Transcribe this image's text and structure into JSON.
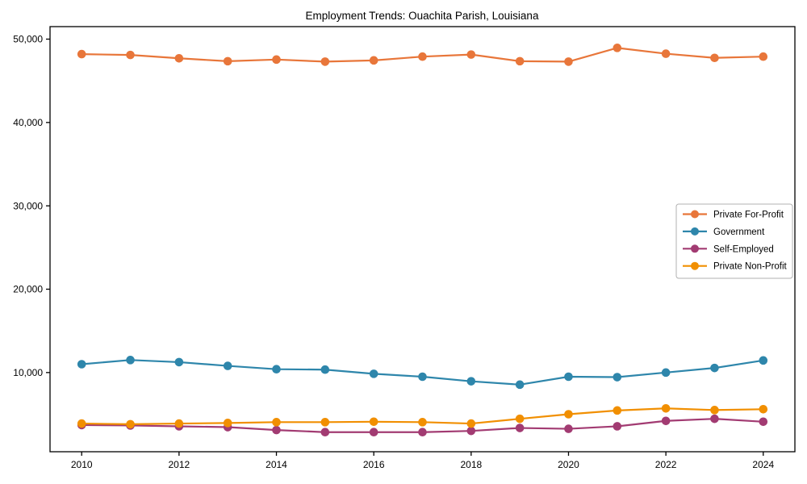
{
  "chart_data": {
    "type": "line",
    "title": "Employment Trends: Ouachita Parish, Louisiana",
    "xlabel": "",
    "ylabel": "",
    "x": [
      2010,
      2011,
      2012,
      2013,
      2014,
      2015,
      2016,
      2017,
      2018,
      2019,
      2020,
      2021,
      2022,
      2023,
      2024
    ],
    "series": [
      {
        "name": "Private For-Profit",
        "color": "#E8763A",
        "values": [
          48200,
          48100,
          47700,
          47350,
          47550,
          47300,
          47450,
          47900,
          48150,
          47350,
          47300,
          48950,
          48250,
          47750,
          47900
        ]
      },
      {
        "name": "Government",
        "color": "#2E86AB",
        "values": [
          11000,
          11500,
          11250,
          10800,
          10400,
          10350,
          9850,
          9500,
          8950,
          8550,
          9500,
          9450,
          10000,
          10550,
          11450
        ]
      },
      {
        "name": "Self-Employed",
        "color": "#A23B72",
        "values": [
          3700,
          3650,
          3550,
          3450,
          3100,
          2850,
          2850,
          2850,
          3000,
          3350,
          3250,
          3550,
          4200,
          4450,
          4100
        ]
      },
      {
        "name": "Private Non-Profit",
        "color": "#F18F01",
        "values": [
          3880,
          3800,
          3880,
          3950,
          4050,
          4050,
          4100,
          4050,
          3880,
          4450,
          5000,
          5450,
          5700,
          5500,
          5600
        ]
      }
    ],
    "xlim": [
      2009.35,
      2024.65
    ],
    "ylim": [
      500,
      51500
    ],
    "xticks": [
      2010,
      2012,
      2014,
      2016,
      2018,
      2020,
      2022,
      2024
    ],
    "xtick_labels": [
      "2010",
      "2012",
      "2014",
      "2016",
      "2018",
      "2020",
      "2022",
      "2024"
    ],
    "yticks": [
      10000,
      20000,
      30000,
      40000,
      50000
    ],
    "ytick_labels": [
      "10,000",
      "20,000",
      "30,000",
      "40,000",
      "50,000"
    ],
    "grid": false,
    "legend_position": "center right",
    "colors": {
      "spine": "#000000",
      "background": "#ffffff",
      "legend_border": "#b0b0b0"
    }
  }
}
